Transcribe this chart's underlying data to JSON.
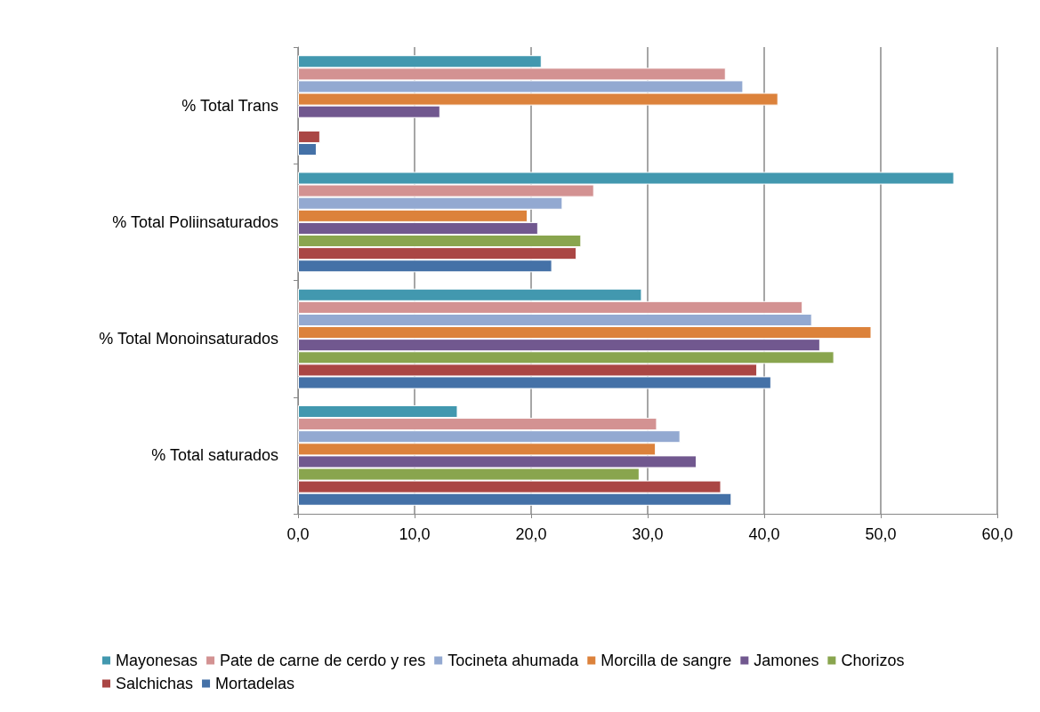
{
  "chart_data": {
    "type": "bar",
    "orientation": "horizontal",
    "categories": [
      "% Total Trans",
      "% Total Poliinsaturados",
      "% Total Monoinsaturados",
      "% Total saturados"
    ],
    "series": [
      {
        "name": "Mayonesas",
        "color": "#4298af",
        "values": [
          20.9,
          56.3,
          29.5,
          13.7
        ]
      },
      {
        "name": "Pate de carne de cerdo y res",
        "color": "#d39292",
        "values": [
          36.7,
          25.4,
          43.3,
          30.8
        ]
      },
      {
        "name": "Tocineta ahumada",
        "color": "#93a9d1",
        "values": [
          38.2,
          22.7,
          44.1,
          32.8
        ]
      },
      {
        "name": "Morcilla de sangre",
        "color": "#dc823b",
        "values": [
          41.2,
          19.7,
          49.2,
          30.7
        ]
      },
      {
        "name": "Jamones",
        "color": "#71588f",
        "values": [
          12.2,
          20.6,
          44.8,
          34.2
        ]
      },
      {
        "name": "Chorizos",
        "color": "#89a54e",
        "values": [
          null,
          24.3,
          46.0,
          29.3
        ]
      },
      {
        "name": "Salchichas",
        "color": "#aa4644",
        "values": [
          1.9,
          23.9,
          39.4,
          36.3
        ]
      },
      {
        "name": "Mortadelas",
        "color": "#4471a7",
        "values": [
          1.6,
          21.8,
          40.6,
          37.2
        ]
      }
    ],
    "xlim": [
      0,
      60
    ],
    "xticks": [
      {
        "value": 0,
        "label": "0,0"
      },
      {
        "value": 10,
        "label": "10,0"
      },
      {
        "value": 20,
        "label": "20,0"
      },
      {
        "value": 30,
        "label": "30,0"
      },
      {
        "value": 40,
        "label": "40,0"
      },
      {
        "value": 50,
        "label": "50,0"
      },
      {
        "value": 60,
        "label": "60,0"
      }
    ],
    "grid": "x",
    "legend": "bottom"
  }
}
